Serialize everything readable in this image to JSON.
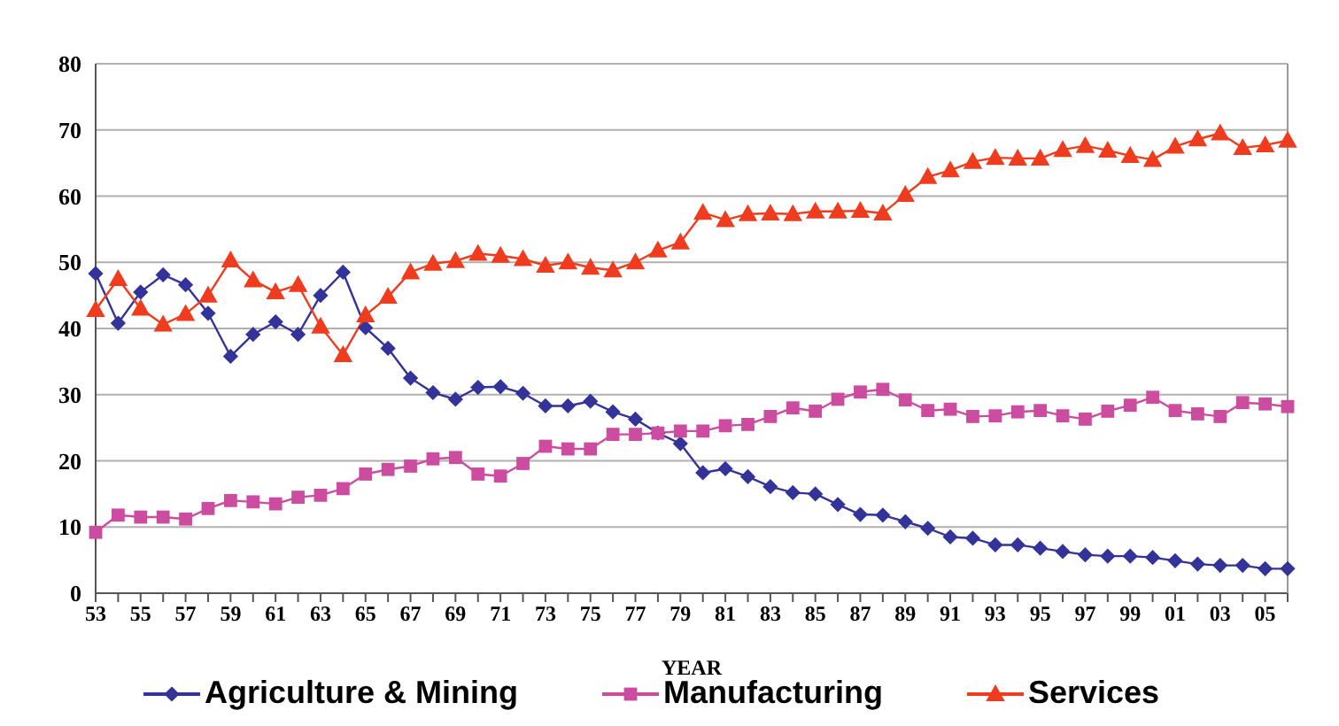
{
  "chart_data": {
    "type": "line",
    "xlabel": "YEAR",
    "categories": [
      "53",
      null,
      "55",
      null,
      "57",
      null,
      "59",
      null,
      "61",
      null,
      "63",
      null,
      "65",
      null,
      "67",
      null,
      "69",
      null,
      "71",
      null,
      "73",
      null,
      "75",
      null,
      "77",
      null,
      "79",
      null,
      "81",
      null,
      "83",
      null,
      "85",
      null,
      "87",
      null,
      "89",
      null,
      "91",
      null,
      "93",
      null,
      "95",
      null,
      "97",
      null,
      "99",
      null,
      "01",
      null,
      "03",
      null,
      "05",
      null
    ],
    "series": [
      {
        "name": "Agriculture & Mining",
        "color": "#333399",
        "marker": "diamond",
        "values": [
          48.3,
          40.8,
          45.5,
          48.1,
          46.6,
          42.3,
          35.8,
          39.1,
          41.0,
          39.1,
          45.0,
          48.5,
          40.1,
          37.0,
          32.5,
          30.3,
          29.3,
          31.1,
          31.2,
          30.2,
          28.3,
          28.3,
          29.0,
          27.4,
          26.3,
          24.2,
          22.6,
          18.2,
          18.8,
          17.6,
          16.1,
          15.2,
          15.0,
          13.4,
          11.9,
          11.8,
          10.8,
          9.8,
          8.5,
          8.3,
          7.3,
          7.3,
          6.8,
          6.3,
          5.8,
          5.6,
          5.6,
          5.4,
          4.9,
          4.4,
          4.2,
          4.2,
          3.7,
          3.7
        ]
      },
      {
        "name": "Manufacturing",
        "color": "#cc4ca0",
        "marker": "square",
        "values": [
          9.2,
          11.8,
          11.5,
          11.5,
          11.2,
          12.8,
          14.0,
          13.8,
          13.5,
          14.5,
          14.8,
          15.8,
          18.0,
          18.7,
          19.2,
          20.3,
          20.5,
          18.0,
          17.7,
          19.6,
          22.2,
          21.8,
          21.8,
          24.0,
          24.0,
          24.2,
          24.5,
          24.5,
          25.3,
          25.5,
          26.7,
          28.0,
          27.5,
          29.3,
          30.4,
          30.8,
          29.2,
          27.6,
          27.8,
          26.7,
          26.8,
          27.4,
          27.6,
          26.8,
          26.3,
          27.5,
          28.4,
          29.6,
          27.6,
          27.1,
          26.7,
          28.8,
          28.6,
          28.2
        ]
      },
      {
        "name": "Services",
        "color": "#f03c1e",
        "marker": "triangle",
        "values": [
          42.8,
          47.5,
          43.0,
          40.6,
          42.2,
          45.0,
          50.3,
          47.3,
          45.5,
          46.6,
          40.3,
          36.0,
          42.0,
          44.8,
          48.5,
          49.8,
          50.2,
          51.3,
          51.0,
          50.5,
          49.5,
          50.0,
          49.2,
          48.8,
          50.0,
          51.8,
          53.0,
          57.5,
          56.4,
          57.3,
          57.4,
          57.3,
          57.7,
          57.7,
          57.8,
          57.4,
          60.2,
          62.9,
          63.9,
          65.2,
          65.8,
          65.7,
          65.7,
          67.0,
          67.6,
          66.9,
          66.1,
          65.5,
          67.5,
          68.6,
          69.5,
          67.3,
          67.7,
          68.4
        ]
      }
    ],
    "ylim": [
      0,
      80
    ],
    "yticks": [
      0,
      10,
      20,
      30,
      40,
      50,
      60,
      70,
      80
    ],
    "grid": "y",
    "legend": "bottom"
  }
}
